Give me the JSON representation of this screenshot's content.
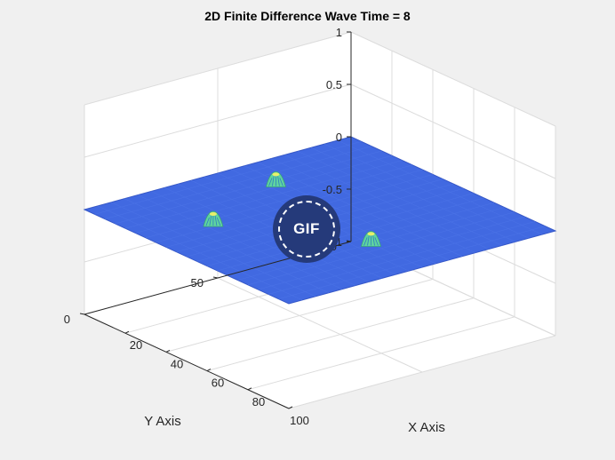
{
  "chart_data": {
    "type": "surface",
    "title": "2D Finite Difference Wave Time = 8",
    "xlabel": "X Axis",
    "ylabel": "Y Axis",
    "zlabel": "",
    "xlim": [
      0,
      100
    ],
    "ylim": [
      0,
      100
    ],
    "zlim": [
      -1,
      1
    ],
    "xticks": [
      "20",
      "40",
      "60",
      "80",
      "100"
    ],
    "yticks": [
      "0",
      "50",
      "100"
    ],
    "zticks": [
      "1",
      "0.5",
      "0",
      "-0.5",
      "-1"
    ],
    "surface_level": 0,
    "surface_color": "#4169e1",
    "peak_color": "#5fd3a0",
    "peaks": [
      {
        "x": 18,
        "y": 58,
        "z": 0.12
      },
      {
        "x": 33,
        "y": 23,
        "z": 0.12
      },
      {
        "x": 75,
        "y": 50,
        "z": 0.12
      }
    ],
    "grid": true
  },
  "overlay": {
    "badge_label": "GIF"
  }
}
